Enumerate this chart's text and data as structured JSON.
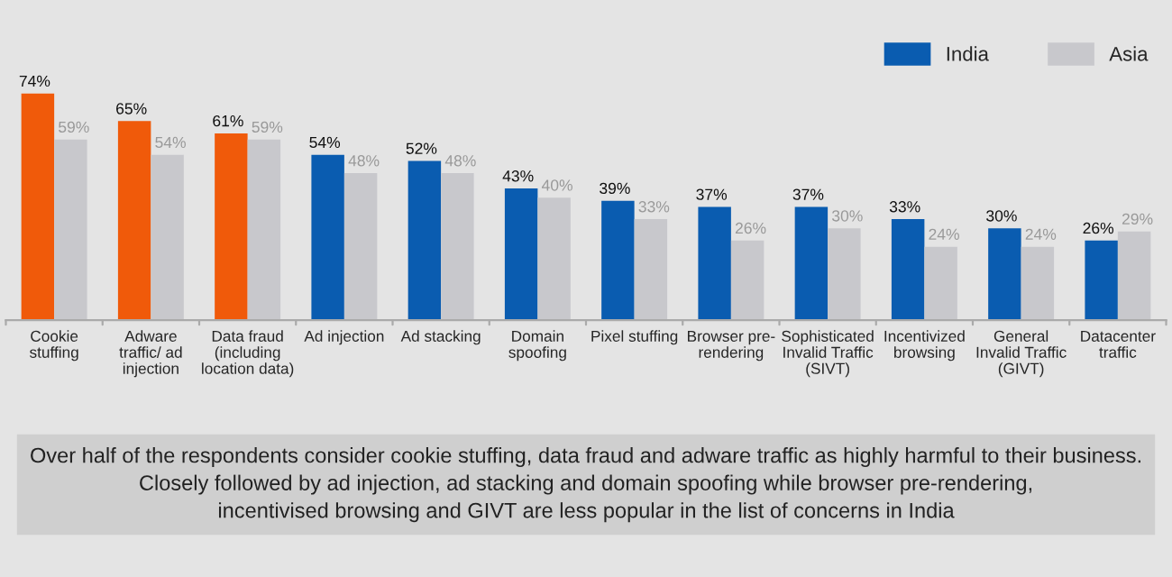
{
  "chart_data": {
    "type": "bar",
    "categories": [
      "Cookie\nstuffing",
      "Adware\ntraffic/ ad\ninjection",
      "Data fraud\n(including\nlocation data)",
      "Ad injection",
      "Ad stacking",
      "Domain\nspoofing",
      "Pixel stuffing",
      "Browser pre-\nrendering",
      "Sophisticated\nInvalid Traffic\n(SIVT)",
      "Incentivized\nbrowsing",
      "General\nInvalid Traffic\n(GIVT)",
      "Datacenter\ntraffic"
    ],
    "series": [
      {
        "name": "India",
        "color": "#0a5cb0",
        "colors": [
          "#f05a0a",
          "#f05a0a",
          "#f05a0a",
          "#0a5cb0",
          "#0a5cb0",
          "#0a5cb0",
          "#0a5cb0",
          "#0a5cb0",
          "#0a5cb0",
          "#0a5cb0",
          "#0a5cb0",
          "#0a5cb0"
        ],
        "values": [
          74,
          65,
          61,
          54,
          52,
          43,
          39,
          37,
          37,
          33,
          30,
          26
        ],
        "value_labels": [
          "74%",
          "65%",
          "61%",
          "54%",
          "52%",
          "43%",
          "39%",
          "37%",
          "37%",
          "33%",
          "30%",
          "26%"
        ]
      },
      {
        "name": "Asia",
        "color": "#c8c8cc",
        "values": [
          59,
          54,
          59,
          48,
          48,
          40,
          33,
          26,
          30,
          24,
          24,
          29
        ],
        "value_labels": [
          "59%",
          "54%",
          "59%",
          "48%",
          "48%",
          "40%",
          "33%",
          "26%",
          "30%",
          "24%",
          "24%",
          "29%"
        ]
      }
    ],
    "relative": false,
    "legend": "top right",
    "grid": false,
    "annotations": [
      "Over half of the respondents consider cookie stuffing, data fraud and adware traffic as highly harmful to their business.\nClosely followed by ad injection, ad stacking and domain spoofing while browser pre-rendering,\nincentivised browsing and GIVT are less popular in the list of concerns in India"
    ]
  }
}
